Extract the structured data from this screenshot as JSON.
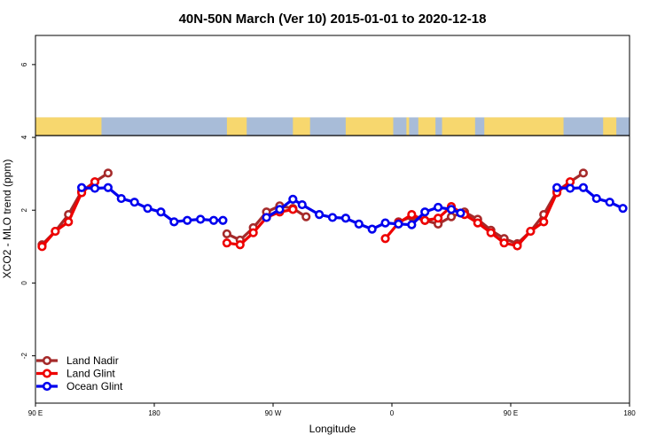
{
  "chart_data": {
    "type": "line",
    "title": "40N-50N March (Ver 10)   2015-01-01 to 2020-12-18",
    "xlabel": "Longitude",
    "ylabel": "XCO2 - MLO trend (ppm)",
    "xlim": [
      90,
      540
    ],
    "ylim": [
      -3.3,
      6.8
    ],
    "x_ticks": [
      {
        "value": 90,
        "label": "90 E"
      },
      {
        "value": 180,
        "label": "180"
      },
      {
        "value": 270,
        "label": "90 W"
      },
      {
        "value": 360,
        "label": "0"
      },
      {
        "value": 450,
        "label": "90 E"
      },
      {
        "value": 540,
        "label": "180"
      }
    ],
    "y_ticks": [
      {
        "value": -2,
        "label": "-2"
      },
      {
        "value": 0,
        "label": "0"
      },
      {
        "value": 2,
        "label": "2"
      },
      {
        "value": 4,
        "label": "4"
      },
      {
        "value": 6,
        "label": "6"
      }
    ],
    "map_strip": {
      "y_range": [
        4.05,
        4.55
      ],
      "ocean_color": "#a8bcd8",
      "land_color": "#f7d76e",
      "land_segments": [
        [
          90,
          140
        ],
        [
          235,
          250
        ],
        [
          285,
          298
        ],
        [
          325,
          361
        ],
        [
          371,
          373
        ],
        [
          380,
          393
        ],
        [
          398,
          423
        ],
        [
          430,
          490
        ],
        [
          520,
          530
        ]
      ]
    },
    "legend_position": "bottom-left",
    "series": [
      {
        "name": "Land Nadir",
        "color": "#a52a2a",
        "segments": [
          [
            [
              95,
              1.05
            ],
            [
              105,
              1.42
            ],
            [
              115,
              1.88
            ],
            [
              125,
              2.52
            ],
            [
              135,
              2.78
            ],
            [
              145,
              3.02
            ]
          ],
          [
            [
              235,
              1.35
            ],
            [
              245,
              1.18
            ],
            [
              255,
              1.52
            ],
            [
              265,
              1.95
            ],
            [
              275,
              2.12
            ],
            [
              285,
              2.05
            ],
            [
              295,
              1.82
            ]
          ],
          [
            [
              365,
              1.68
            ],
            [
              375,
              1.82
            ],
            [
              385,
              1.72
            ],
            [
              395,
              1.62
            ],
            [
              405,
              1.82
            ],
            [
              415,
              1.95
            ],
            [
              425,
              1.75
            ],
            [
              435,
              1.45
            ],
            [
              445,
              1.22
            ],
            [
              455,
              1.08
            ],
            [
              465,
              1.42
            ],
            [
              475,
              1.88
            ],
            [
              485,
              2.52
            ],
            [
              495,
              2.78
            ],
            [
              505,
              3.02
            ]
          ]
        ]
      },
      {
        "name": "Land Glint",
        "color": "#ee0000",
        "segments": [
          [
            [
              95,
              1.0
            ],
            [
              105,
              1.42
            ],
            [
              115,
              1.68
            ],
            [
              125,
              2.48
            ],
            [
              135,
              2.78
            ]
          ],
          [
            [
              235,
              1.1
            ],
            [
              245,
              1.05
            ],
            [
              255,
              1.38
            ],
            [
              265,
              1.8
            ],
            [
              275,
              1.95
            ],
            [
              285,
              2.02
            ]
          ],
          [
            [
              355,
              1.22
            ],
            [
              365,
              1.65
            ],
            [
              375,
              1.88
            ],
            [
              385,
              1.72
            ],
            [
              395,
              1.78
            ],
            [
              405,
              2.1
            ],
            [
              415,
              1.88
            ],
            [
              425,
              1.65
            ],
            [
              435,
              1.38
            ],
            [
              445,
              1.1
            ],
            [
              455,
              1.02
            ],
            [
              465,
              1.42
            ],
            [
              475,
              1.68
            ],
            [
              485,
              2.48
            ],
            [
              495,
              2.78
            ]
          ]
        ]
      },
      {
        "name": "Ocean Glint",
        "color": "#0000ee",
        "segments": [
          [
            [
              125,
              2.62
            ],
            [
              135,
              2.6
            ],
            [
              145,
              2.62
            ],
            [
              155,
              2.32
            ],
            [
              165,
              2.22
            ],
            [
              175,
              2.05
            ],
            [
              185,
              1.95
            ],
            [
              195,
              1.68
            ],
            [
              205,
              1.72
            ],
            [
              215,
              1.75
            ],
            [
              225,
              1.72
            ],
            [
              232,
              1.72
            ]
          ],
          [
            [
              265,
              1.8
            ],
            [
              275,
              2.02
            ],
            [
              285,
              2.3
            ],
            [
              292,
              2.15
            ],
            [
              305,
              1.88
            ],
            [
              315,
              1.8
            ],
            [
              325,
              1.78
            ],
            [
              335,
              1.62
            ],
            [
              345,
              1.48
            ],
            [
              355,
              1.65
            ],
            [
              365,
              1.62
            ],
            [
              375,
              1.6
            ],
            [
              385,
              1.95
            ],
            [
              395,
              2.08
            ],
            [
              405,
              2.02
            ],
            [
              412,
              1.92
            ]
          ],
          [
            [
              485,
              2.62
            ],
            [
              495,
              2.6
            ],
            [
              505,
              2.62
            ],
            [
              515,
              2.32
            ],
            [
              525,
              2.22
            ],
            [
              535,
              2.05
            ]
          ]
        ]
      }
    ]
  }
}
